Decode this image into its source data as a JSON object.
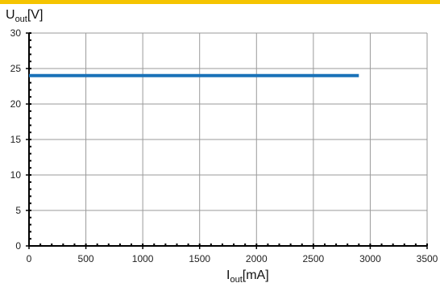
{
  "colors": {
    "accent": "#f5c400",
    "series": "#1a72b8",
    "grid": "#9a9a9a",
    "axis": "#000000"
  },
  "chart_data": {
    "type": "line",
    "title": "",
    "xlabel": {
      "main": "I",
      "sub": "out",
      "unit": "[mA]"
    },
    "ylabel": {
      "main": "U",
      "sub": "out",
      "unit": "[V]"
    },
    "xlim": [
      0,
      3500
    ],
    "ylim": [
      0,
      30
    ],
    "xticks": [
      0,
      500,
      1000,
      1500,
      2000,
      2500,
      3000,
      3500
    ],
    "yticks": [
      0,
      5,
      10,
      15,
      20,
      25,
      30
    ],
    "minor_tick_step": {
      "x": 100,
      "y": 1
    },
    "grid": true,
    "legend": "none",
    "series": [
      {
        "x": [
          0,
          2900
        ],
        "y": [
          24,
          24
        ]
      }
    ]
  }
}
